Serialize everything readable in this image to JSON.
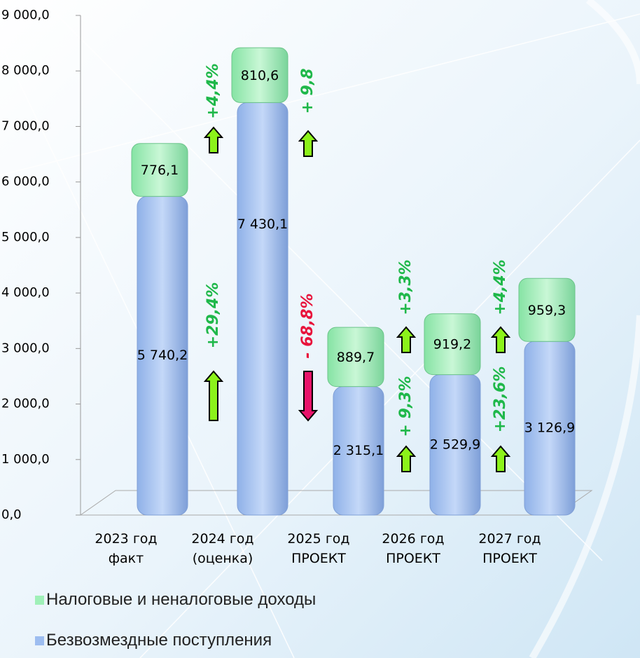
{
  "chart_data": {
    "type": "stacked-bar",
    "categories": [
      "2023 год факт",
      "2024 год (оценка)",
      "2025 год ПРОЕКТ",
      "2026 год ПРОЕКТ",
      "2027 год ПРОЕКТ"
    ],
    "series": [
      {
        "name": "Безвозмездные поступления",
        "color": "#9dbdf0",
        "values": [
          5740.2,
          7430.1,
          2315.1,
          2529.9,
          3126.9
        ],
        "value_labels": [
          "5 740,2",
          "7 430,1",
          "2 315,1",
          "2 529,9",
          "3 126,9"
        ]
      },
      {
        "name": "Налоговые и неналоговые доходы",
        "color": "#9ff0b8",
        "values": [
          776.1,
          810.6,
          889.7,
          919.2,
          959.3
        ],
        "value_labels": [
          "776,1",
          "810,6",
          "889,7",
          "919,2",
          "959,3"
        ]
      }
    ],
    "ylim": [
      0,
      9000
    ],
    "yticks": [
      {
        "value": 0,
        "label": "0,0"
      },
      {
        "value": 1000,
        "label": "1 000,0"
      },
      {
        "value": 2000,
        "label": "2 000,0"
      },
      {
        "value": 3000,
        "label": "3 000,0"
      },
      {
        "value": 4000,
        "label": "4 000,0"
      },
      {
        "value": 5000,
        "label": "5 000,0"
      },
      {
        "value": 6000,
        "label": "6 000,0"
      },
      {
        "value": 7000,
        "label": "7 000,0"
      },
      {
        "value": 8000,
        "label": "8 000,0"
      },
      {
        "value": 9000,
        "label": "9 000,0"
      }
    ],
    "legend": "bottom-left",
    "annotations": [
      {
        "text": "+4,4%",
        "direction": "up",
        "color": "#1fb84a"
      },
      {
        "text": "+29,4%",
        "direction": "up",
        "color": "#1fb84a"
      },
      {
        "text": "+ 9,8",
        "direction": "up",
        "color": "#1fb84a"
      },
      {
        "text": "- 68,8%",
        "direction": "down",
        "color": "#e8143c"
      },
      {
        "text": "+3,3%",
        "direction": "up",
        "color": "#1fb84a"
      },
      {
        "text": "+ 9,3%",
        "direction": "up",
        "color": "#1fb84a"
      },
      {
        "text": "+4,4%",
        "direction": "up",
        "color": "#1fb84a"
      },
      {
        "text": "+23,6%",
        "direction": "up",
        "color": "#1fb84a"
      }
    ]
  }
}
